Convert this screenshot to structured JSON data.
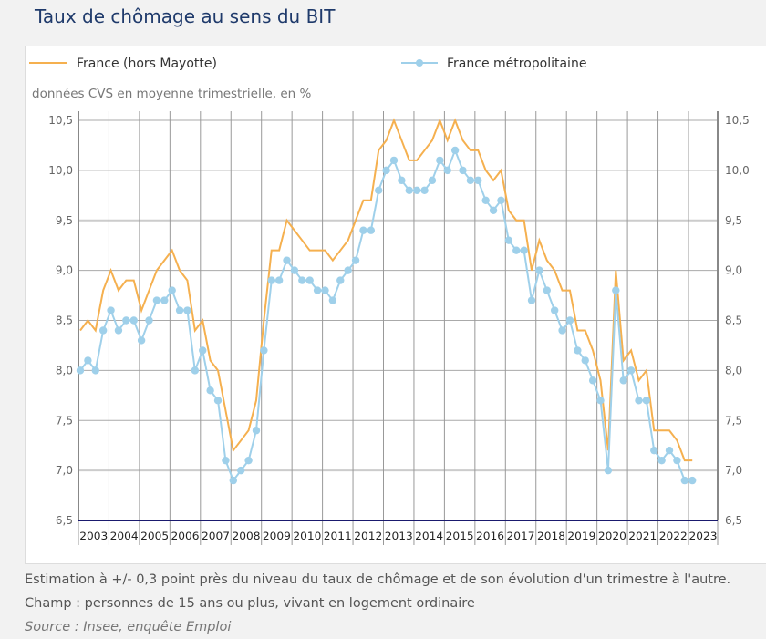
{
  "title": "Taux de chômage au sens du BIT",
  "notes": {
    "estimation": "Estimation à +/- 0,3 point près du niveau du taux de chômage et de son évolution d'un trimestre à l'autre.",
    "champ": "Champ : personnes de 15 ans ou plus, vivant en logement ordinaire",
    "source": "Source : Insee, enquête Emploi"
  },
  "colors": {
    "orange": "#f5b04f",
    "blue": "#9fd0ea",
    "axis": "#1a1a6e"
  },
  "chart_data": {
    "type": "line",
    "subtitle": "données CVS en moyenne trimestrielle, en %",
    "legend_position": "top",
    "x_start": "2003 T1",
    "x_frequency": "quarterly",
    "x_tick_labels": [
      "2003",
      "2004",
      "2005",
      "2006",
      "2007",
      "2008",
      "2009",
      "2010",
      "2011",
      "2012",
      "2013",
      "2014",
      "2015",
      "2016",
      "2017",
      "2018",
      "2019",
      "2020",
      "2021",
      "2022",
      "2023"
    ],
    "y_tick_labels": [
      "6,5",
      "7,0",
      "7,5",
      "8,0",
      "8,5",
      "9,0",
      "9,5",
      "10,0",
      "10,5"
    ],
    "ylim": [
      6.5,
      10.5
    ],
    "grid": true,
    "series": [
      {
        "name": "France (hors Mayotte)",
        "marker": "none",
        "values": [
          8.4,
          8.5,
          8.4,
          8.8,
          9.0,
          8.8,
          8.9,
          8.9,
          8.6,
          8.8,
          9.0,
          9.1,
          9.2,
          9.0,
          8.9,
          8.4,
          8.5,
          8.1,
          8.0,
          7.6,
          7.2,
          7.3,
          7.4,
          7.7,
          8.5,
          9.2,
          9.2,
          9.5,
          9.4,
          9.3,
          9.2,
          9.2,
          9.2,
          9.1,
          9.2,
          9.3,
          9.5,
          9.7,
          9.7,
          10.2,
          10.3,
          10.5,
          10.3,
          10.1,
          10.1,
          10.2,
          10.3,
          10.5,
          10.3,
          10.5,
          10.3,
          10.2,
          10.2,
          10.0,
          9.9,
          10.0,
          9.6,
          9.5,
          9.5,
          9.0,
          9.3,
          9.1,
          9.0,
          8.8,
          8.8,
          8.4,
          8.4,
          8.2,
          7.9,
          7.2,
          9.0,
          8.1,
          8.2,
          7.9,
          8.0,
          7.4,
          7.4,
          7.4,
          7.3,
          7.1,
          7.1
        ]
      },
      {
        "name": "France métropolitaine",
        "marker": "circle",
        "values": [
          8.0,
          8.1,
          8.0,
          8.4,
          8.6,
          8.4,
          8.5,
          8.5,
          8.3,
          8.5,
          8.7,
          8.7,
          8.8,
          8.6,
          8.6,
          8.0,
          8.2,
          7.8,
          7.7,
          7.1,
          6.9,
          7.0,
          7.1,
          7.4,
          8.2,
          8.9,
          8.9,
          9.1,
          9.0,
          8.9,
          8.9,
          8.8,
          8.8,
          8.7,
          8.9,
          9.0,
          9.1,
          9.4,
          9.4,
          9.8,
          10.0,
          10.1,
          9.9,
          9.8,
          9.8,
          9.8,
          9.9,
          10.1,
          10.0,
          10.2,
          10.0,
          9.9,
          9.9,
          9.7,
          9.6,
          9.7,
          9.3,
          9.2,
          9.2,
          8.7,
          9.0,
          8.8,
          8.6,
          8.4,
          8.5,
          8.2,
          8.1,
          7.9,
          7.7,
          7.0,
          8.8,
          7.9,
          8.0,
          7.7,
          7.7,
          7.2,
          7.1,
          7.2,
          7.1,
          6.9,
          6.9
        ]
      }
    ]
  }
}
